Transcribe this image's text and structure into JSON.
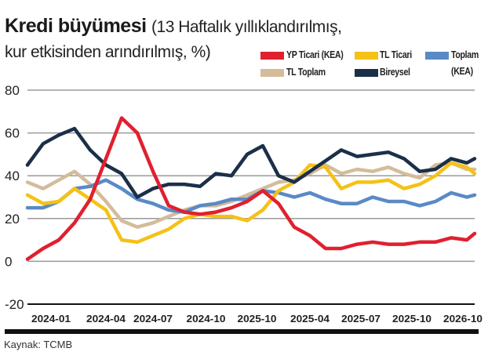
{
  "title": {
    "bold": "Kredi büyümesi",
    "rest_line1": "(13 Haftalık yıllıklandırılmış,",
    "line2": "kur etkisinden arındırılmış, %)"
  },
  "source": "Kaynak: TCMB",
  "chart_data": {
    "type": "line",
    "title": "Kredi büyümesi (13 Haftalık yıllıklandırılmış, kur etkisinden arındırılmış, %)",
    "xlabel": "",
    "ylabel": "",
    "ylim": [
      -20,
      80
    ],
    "yticks": [
      80,
      60,
      40,
      20,
      0,
      -20
    ],
    "x_unit": "weeks since start",
    "xlim": [
      0,
      114
    ],
    "xticks": [
      {
        "x": 6,
        "label": "2024-01"
      },
      {
        "x": 20,
        "label": "2024-04"
      },
      {
        "x": 32,
        "label": "2024-07"
      },
      {
        "x": 45.5,
        "label": "2024-10"
      },
      {
        "x": 58.5,
        "label": "2025-10"
      },
      {
        "x": 72,
        "label": "2025-04"
      },
      {
        "x": 85,
        "label": "2025-07"
      },
      {
        "x": 98,
        "label": "2025-10"
      },
      {
        "x": 111,
        "label": "2026-10"
      }
    ],
    "grid": true,
    "legend_position": "top-right",
    "x": [
      0,
      4,
      8,
      12,
      16,
      20,
      24,
      28,
      32,
      36,
      40,
      44,
      48,
      52,
      56,
      60,
      64,
      68,
      72,
      76,
      80,
      84,
      88,
      92,
      96,
      100,
      104,
      108,
      112,
      114
    ],
    "series": [
      {
        "name": "TL Toplam",
        "color": "#d4bc9a",
        "values": [
          37,
          34,
          38,
          42,
          36,
          28,
          19,
          16,
          18,
          21,
          24,
          26,
          26,
          28,
          31,
          34,
          37,
          38,
          41,
          45,
          41,
          43,
          42,
          44,
          41,
          39,
          45,
          46,
          43,
          43
        ]
      },
      {
        "name": "Toplam (KEA)",
        "color": "#5a8ac6",
        "values": [
          25,
          25,
          28,
          34,
          35,
          38,
          34,
          29,
          27,
          24,
          23,
          26,
          27,
          29,
          29,
          33,
          32,
          30,
          32,
          29,
          27,
          27,
          30,
          28,
          28,
          26,
          28,
          32,
          30,
          31
        ]
      },
      {
        "name": "TL Ticari",
        "color": "#f5c116",
        "values": [
          31,
          27,
          28,
          34,
          29,
          24,
          10,
          9,
          12,
          15,
          20,
          22,
          21,
          21,
          19,
          24,
          33,
          37,
          45,
          44,
          34,
          37,
          37,
          38,
          34,
          36,
          40,
          46,
          44,
          41
        ]
      },
      {
        "name": "Bireysel",
        "color": "#1b2f48",
        "values": [
          45,
          55,
          59,
          62,
          52,
          45,
          41,
          30,
          34,
          36,
          36,
          35,
          41,
          40,
          50,
          54,
          40,
          37,
          42,
          47,
          52,
          49,
          50,
          51,
          48,
          42,
          43,
          48,
          46,
          48
        ]
      },
      {
        "name": "YP Ticari (KEA)",
        "color": "#e0202f",
        "values": [
          1,
          6,
          10,
          18,
          29,
          48,
          67,
          60,
          42,
          26,
          23,
          22,
          23,
          25,
          28,
          33,
          27,
          16,
          12,
          6,
          6,
          8,
          9,
          8,
          8,
          9,
          9,
          11,
          10,
          13
        ]
      }
    ],
    "legend": [
      {
        "label": "YP Ticari (KEA)",
        "color": "#e0202f"
      },
      {
        "label": "TL Ticari",
        "color": "#f5c116"
      },
      {
        "label": "Toplam",
        "label2": "(KEA)",
        "color": "#5a8ac6"
      },
      {
        "label": "TL Toplam",
        "color": "#d4bc9a"
      },
      {
        "label": "Bireysel",
        "color": "#1b2f48"
      }
    ]
  }
}
